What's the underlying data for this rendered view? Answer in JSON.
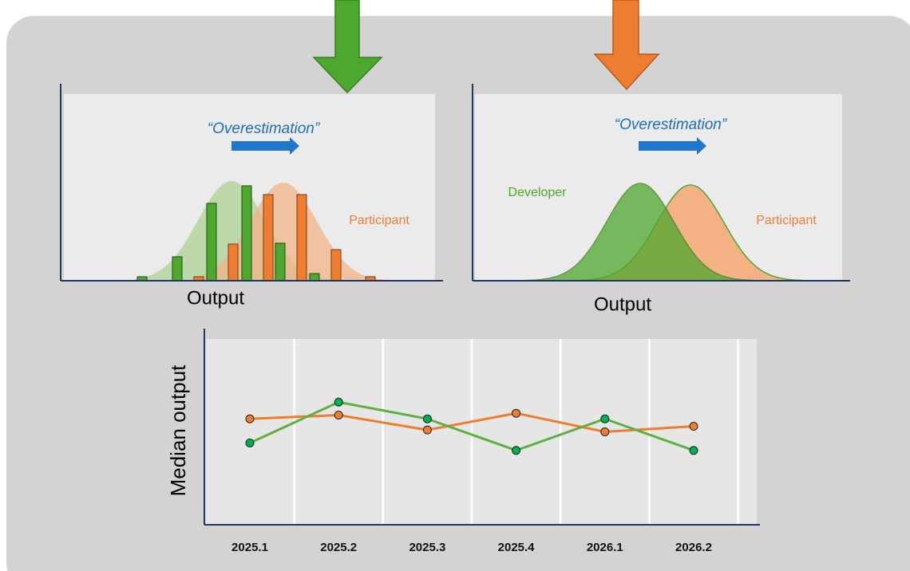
{
  "left_panel": {
    "title": "“Overestimation”",
    "label": "Participant",
    "xlabel": "Output"
  },
  "right_panel": {
    "title": "“Overestimation”",
    "labels": [
      "Developer",
      "Participant"
    ],
    "xlabel": "Output"
  },
  "chart_data": {
    "type": "line",
    "ylabel": "Median output",
    "categories": [
      "2025.1",
      "2025.2",
      "2025.3",
      "2025.4",
      "2026.1",
      "2026.2"
    ],
    "series": [
      {
        "color": "#ed7d31",
        "values": [
          57,
          59,
          51,
          60,
          50,
          53
        ]
      },
      {
        "color": "#5fb040",
        "values": [
          44,
          66,
          57,
          40,
          57,
          40
        ]
      }
    ],
    "ylim": [
      0,
      100
    ],
    "grid": true
  }
}
